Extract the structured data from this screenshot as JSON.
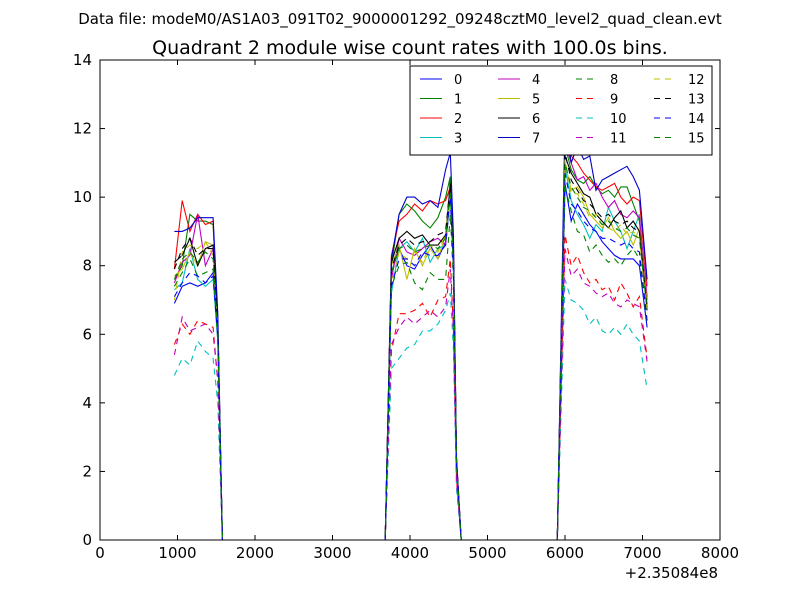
{
  "suptitle": "Data file: modeM0/AS1A03_091T02_9000001292_09248cztM0_level2_quad_clean.evt",
  "chart_data": {
    "type": "line",
    "title": "Quadrant 2 module wise count rates with 100.0s bins.",
    "xlabel": "",
    "ylabel": "",
    "x_offset_label": "+2.35084e8",
    "xlim": [
      0,
      8000
    ],
    "ylim": [
      0,
      14
    ],
    "xticks": [
      0,
      1000,
      2000,
      3000,
      4000,
      5000,
      6000,
      7000,
      8000
    ],
    "yticks": [
      0,
      2,
      4,
      6,
      8,
      10,
      12,
      14
    ],
    "grid": false,
    "legend_position": "top-right",
    "legend_columns": 4,
    "x": [
      960,
      1060,
      1160,
      1260,
      1360,
      1460,
      1520,
      1580,
      1680,
      3640,
      3680,
      3760,
      3860,
      3960,
      4060,
      4160,
      4260,
      4360,
      4460,
      4520,
      4560,
      4600,
      4660,
      4720,
      4780,
      5800,
      5860,
      5900,
      6000,
      6080,
      6160,
      6240,
      6320,
      6400,
      6480,
      6560,
      6640,
      6720,
      6800,
      6880,
      6960,
      7060
    ],
    "series": [
      {
        "name": "0",
        "color": "#0000ff",
        "dash": false,
        "values": [
          6.9,
          7.4,
          7.5,
          7.4,
          7.5,
          7.8,
          6.0,
          0,
          0,
          0,
          0,
          7.8,
          8.5,
          8.0,
          7.9,
          8.3,
          8.6,
          8.2,
          8.7,
          10.5,
          8.0,
          2.3,
          0,
          0,
          0,
          0,
          0,
          0,
          10.4,
          9.3,
          9.8,
          9.5,
          9.2,
          9.0,
          8.7,
          8.5,
          8.3,
          8.2,
          8.2,
          8.2,
          8.0,
          6.2
        ]
      },
      {
        "name": "1",
        "color": "#008000",
        "dash": false,
        "values": [
          7.6,
          8.0,
          9.5,
          9.3,
          9.3,
          9.2,
          6.4,
          0,
          0,
          0,
          0,
          8.0,
          9.5,
          9.8,
          9.6,
          9.3,
          9.1,
          9.4,
          10.0,
          10.6,
          8.6,
          2.3,
          0,
          0,
          0,
          0,
          0,
          0,
          11.5,
          10.8,
          10.5,
          10.4,
          10.6,
          10.3,
          10.1,
          10.2,
          10.0,
          10.3,
          10.3,
          9.8,
          9.3,
          7.0
        ]
      },
      {
        "name": "2",
        "color": "#ff0000",
        "dash": false,
        "values": [
          7.9,
          9.9,
          9.0,
          9.5,
          9.2,
          9.3,
          6.3,
          0,
          0,
          0,
          0,
          8.3,
          9.3,
          9.5,
          9.8,
          9.6,
          9.9,
          9.8,
          9.9,
          10.3,
          8.7,
          2.4,
          0,
          0,
          0,
          0,
          0,
          0,
          11.5,
          11.2,
          11.0,
          10.7,
          10.5,
          10.3,
          10.2,
          10.3,
          10.4,
          10.0,
          9.8,
          10.0,
          9.9,
          7.4
        ]
      },
      {
        "name": "3",
        "color": "#00bfbf",
        "dash": false,
        "values": [
          7.3,
          7.5,
          8.5,
          7.6,
          7.4,
          7.6,
          5.8,
          0,
          0,
          0,
          0,
          7.2,
          8.5,
          8.7,
          8.4,
          8.8,
          8.1,
          8.5,
          8.6,
          10.0,
          8.0,
          2.1,
          0,
          0,
          0,
          0,
          0,
          0,
          10.9,
          9.9,
          9.5,
          9.2,
          8.8,
          9.2,
          9.0,
          9.7,
          9.3,
          9.0,
          8.5,
          9.0,
          9.5,
          6.8
        ]
      },
      {
        "name": "4",
        "color": "#bf00bf",
        "dash": false,
        "values": [
          7.5,
          8.1,
          8.3,
          9.5,
          8.0,
          8.5,
          6.0,
          0,
          0,
          0,
          0,
          7.6,
          8.8,
          8.4,
          8.3,
          8.5,
          8.7,
          8.8,
          8.6,
          10.2,
          8.1,
          2.2,
          0,
          0,
          0,
          0,
          0,
          0,
          11.6,
          11.0,
          10.5,
          10.6,
          10.2,
          10.4,
          10.0,
          9.7,
          9.9,
          9.5,
          9.4,
          9.6,
          9.4,
          7.1
        ]
      },
      {
        "name": "5",
        "color": "#bfbf00",
        "dash": false,
        "values": [
          7.7,
          7.9,
          8.4,
          8.0,
          8.7,
          8.6,
          6.1,
          0,
          0,
          0,
          0,
          8.0,
          8.6,
          7.6,
          8.5,
          8.0,
          8.5,
          8.2,
          8.9,
          10.3,
          8.2,
          2.2,
          0,
          0,
          0,
          0,
          0,
          0,
          11.0,
          10.2,
          10.3,
          10.0,
          9.5,
          9.3,
          9.1,
          9.4,
          9.0,
          8.8,
          9.0,
          8.6,
          9.1,
          6.9
        ]
      },
      {
        "name": "6",
        "color": "#000000",
        "dash": false,
        "values": [
          8.1,
          8.3,
          8.8,
          8.0,
          8.5,
          8.6,
          6.2,
          0,
          0,
          0,
          0,
          8.1,
          8.8,
          9.0,
          8.8,
          8.9,
          8.6,
          8.6,
          8.9,
          10.3,
          8.3,
          2.3,
          0,
          0,
          0,
          0,
          0,
          0,
          11.2,
          10.7,
          10.4,
          10.1,
          10.0,
          9.5,
          9.3,
          9.1,
          9.4,
          9.6,
          9.1,
          9.3,
          9.0,
          6.7
        ]
      },
      {
        "name": "7",
        "color": "#0000cc",
        "dash": false,
        "values": [
          9.0,
          9.0,
          9.1,
          9.4,
          9.4,
          9.4,
          6.6,
          0,
          0,
          0,
          0,
          8.2,
          9.5,
          10.0,
          10.0,
          9.8,
          9.9,
          9.7,
          10.8,
          11.3,
          8.9,
          2.4,
          0,
          0,
          0,
          0,
          0,
          0,
          12.3,
          11.0,
          11.5,
          11.1,
          11.2,
          10.2,
          10.5,
          10.6,
          10.7,
          10.8,
          10.9,
          10.6,
          10.2,
          7.6
        ]
      },
      {
        "name": "8",
        "color": "#008000",
        "dash": true,
        "values": [
          7.4,
          7.8,
          8.2,
          7.7,
          7.8,
          7.9,
          5.8,
          0,
          0,
          0,
          0,
          7.4,
          8.0,
          8.1,
          7.5,
          7.3,
          7.8,
          7.6,
          7.6,
          9.5,
          7.6,
          2.1,
          0,
          0,
          0,
          0,
          0,
          0,
          10.3,
          9.6,
          9.0,
          8.9,
          8.4,
          8.6,
          8.3,
          8.1,
          8.2,
          8.0,
          8.3,
          8.5,
          8.2,
          6.3
        ]
      },
      {
        "name": "9",
        "color": "#ff0000",
        "dash": true,
        "values": [
          5.7,
          6.3,
          6.0,
          6.4,
          6.3,
          6.2,
          4.6,
          0,
          0,
          0,
          0,
          5.5,
          6.6,
          6.6,
          6.7,
          6.9,
          6.5,
          7.0,
          7.1,
          8.2,
          6.2,
          1.8,
          0,
          0,
          0,
          0,
          0,
          0,
          8.9,
          8.0,
          8.3,
          7.8,
          7.5,
          7.6,
          7.3,
          7.4,
          7.0,
          7.5,
          7.2,
          6.8,
          7.1,
          5.3
        ]
      },
      {
        "name": "10",
        "color": "#00bfbf",
        "dash": true,
        "values": [
          4.8,
          5.3,
          5.1,
          5.8,
          5.5,
          5.3,
          4.0,
          0,
          0,
          0,
          0,
          5.0,
          5.3,
          5.6,
          5.7,
          6.1,
          6.1,
          6.3,
          6.7,
          7.2,
          5.6,
          1.5,
          0,
          0,
          0,
          0,
          0,
          0,
          7.6,
          7.0,
          6.9,
          6.7,
          6.3,
          6.5,
          6.1,
          6.0,
          6.2,
          6.0,
          6.3,
          6.0,
          5.8,
          4.4
        ]
      },
      {
        "name": "11",
        "color": "#bf00bf",
        "dash": true,
        "values": [
          5.4,
          6.5,
          6.1,
          6.2,
          6.3,
          6.0,
          4.7,
          0,
          0,
          0,
          0,
          5.7,
          6.2,
          6.5,
          6.3,
          6.5,
          6.7,
          6.5,
          6.8,
          7.9,
          6.1,
          1.7,
          0,
          0,
          0,
          0,
          0,
          0,
          8.5,
          7.7,
          7.9,
          7.5,
          7.4,
          7.2,
          7.1,
          7.2,
          6.9,
          6.8,
          7.0,
          6.9,
          6.8,
          5.2
        ]
      },
      {
        "name": "12",
        "color": "#bfbf00",
        "dash": true,
        "values": [
          7.0,
          8.4,
          8.6,
          8.5,
          8.7,
          8.3,
          6.0,
          0,
          0,
          0,
          0,
          7.5,
          8.4,
          8.2,
          8.4,
          8.1,
          8.6,
          8.4,
          8.9,
          10.1,
          8.0,
          2.2,
          0,
          0,
          0,
          0,
          0,
          0,
          11.1,
          10.1,
          10.1,
          9.8,
          9.4,
          9.5,
          9.2,
          9.1,
          9.0,
          9.2,
          8.9,
          9.0,
          8.8,
          6.6
        ]
      },
      {
        "name": "13",
        "color": "#000000",
        "dash": true,
        "values": [
          7.9,
          8.5,
          8.8,
          8.3,
          8.5,
          8.5,
          6.1,
          0,
          0,
          0,
          0,
          7.9,
          8.6,
          8.8,
          8.6,
          8.7,
          8.7,
          8.9,
          9.0,
          10.4,
          8.2,
          2.3,
          0,
          0,
          0,
          0,
          0,
          0,
          11.3,
          10.5,
          10.2,
          9.9,
          9.8,
          9.6,
          9.4,
          9.5,
          9.3,
          9.2,
          9.3,
          9.1,
          9.0,
          6.8
        ]
      },
      {
        "name": "14",
        "color": "#0000ff",
        "dash": true,
        "values": [
          7.1,
          7.5,
          7.8,
          7.7,
          7.5,
          7.7,
          5.9,
          0,
          0,
          0,
          0,
          7.4,
          8.2,
          8.2,
          8.0,
          8.4,
          8.3,
          8.3,
          8.6,
          10.0,
          7.9,
          2.2,
          0,
          0,
          0,
          0,
          0,
          0,
          10.7,
          9.8,
          9.6,
          9.3,
          9.1,
          9.0,
          8.8,
          8.8,
          8.7,
          8.6,
          8.7,
          8.5,
          8.4,
          6.4
        ]
      },
      {
        "name": "15",
        "color": "#008000",
        "dash": true,
        "values": [
          7.6,
          8.2,
          8.4,
          8.1,
          8.4,
          8.2,
          6.0,
          0,
          0,
          0,
          0,
          7.8,
          8.5,
          8.6,
          8.4,
          8.5,
          8.6,
          8.5,
          8.8,
          10.2,
          8.1,
          2.2,
          0,
          0,
          0,
          0,
          0,
          0,
          11.0,
          10.3,
          10.0,
          9.7,
          9.6,
          9.4,
          9.2,
          9.3,
          9.1,
          9.0,
          9.1,
          8.9,
          8.8,
          6.7
        ]
      }
    ]
  }
}
